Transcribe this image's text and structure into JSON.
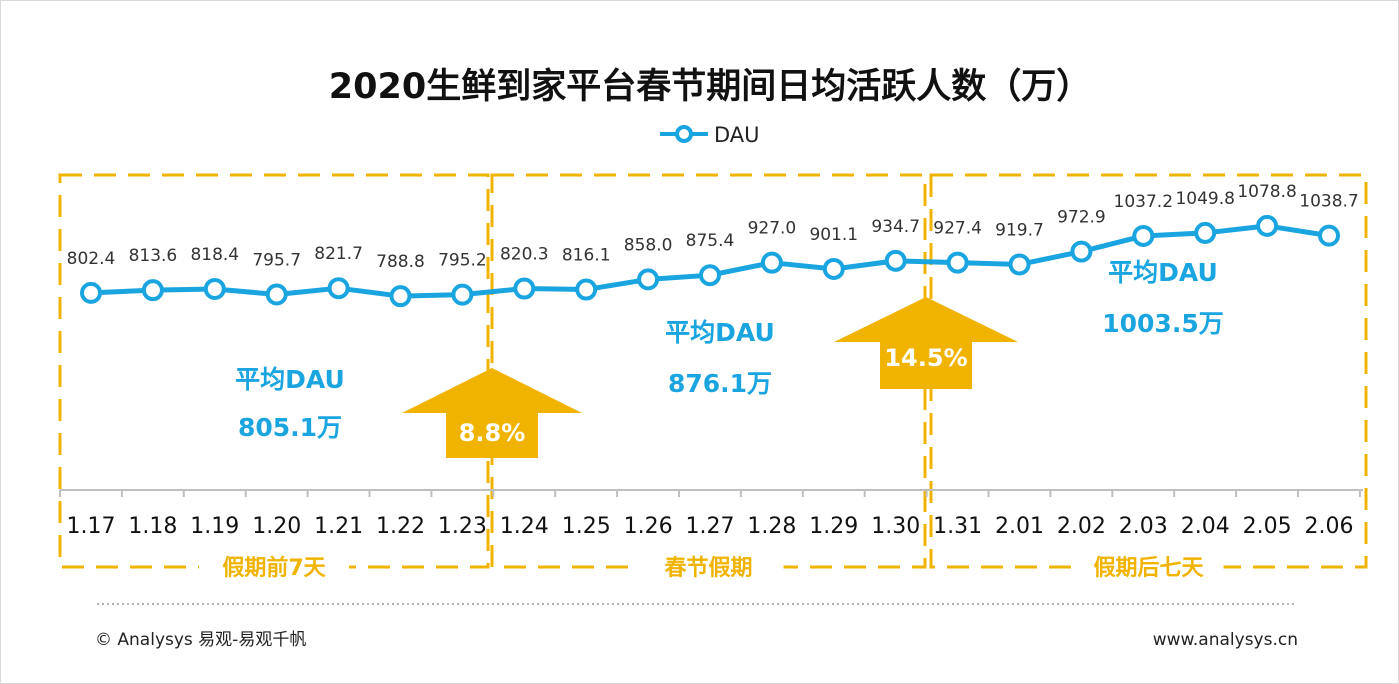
{
  "colors": {
    "line": "#1aa5e0",
    "accent": "#f0b400",
    "title": "#111111"
  },
  "chart_data": {
    "type": "line",
    "title": "2020生鲜到家平台春节期间日均活跃人数（万）",
    "legend": [
      "DAU"
    ],
    "legend_position": "top-center",
    "categories": [
      "1.17",
      "1.18",
      "1.19",
      "1.20",
      "1.21",
      "1.22",
      "1.23",
      "1.24",
      "1.25",
      "1.26",
      "1.27",
      "1.28",
      "1.29",
      "1.30",
      "1.31",
      "2.01",
      "2.02",
      "2.03",
      "2.04",
      "2.05",
      "2.06"
    ],
    "series": [
      {
        "name": "DAU",
        "values": [
          802.4,
          813.6,
          818.4,
          795.7,
          821.7,
          788.8,
          795.2,
          820.3,
          816.1,
          858.0,
          875.4,
          927.0,
          901.1,
          934.7,
          927.4,
          919.7,
          972.9,
          1037.2,
          1049.8,
          1078.8,
          1038.7
        ],
        "labels": [
          "802.4",
          "813.6",
          "818.4",
          "795.7",
          "821.7",
          "788.8",
          "795.2",
          "820.3",
          "816.1",
          "858.0",
          "875.4",
          "927.0",
          "901.1",
          "934.7",
          "927.4",
          "919.7",
          "972.9",
          "1037.2",
          "1049.8",
          "1078.8",
          "1038.7"
        ]
      }
    ],
    "grid": false,
    "sections": [
      {
        "name": "假期前7天",
        "start": 0,
        "end": 6,
        "avg_label": "平均DAU",
        "avg_value": "805.1万"
      },
      {
        "name": "春节假期",
        "start": 7,
        "end": 13,
        "avg_label": "平均DAU",
        "avg_value": "876.1万"
      },
      {
        "name": "假期后七天",
        "start": 14,
        "end": 20,
        "avg_label": "平均DAU",
        "avg_value": "1003.5万"
      }
    ],
    "growth": [
      {
        "label": "8.8%"
      },
      {
        "label": "14.5%"
      }
    ]
  },
  "footer": {
    "left": "© Analysys 易观-易观千帆",
    "right": "www.analysys.cn"
  }
}
